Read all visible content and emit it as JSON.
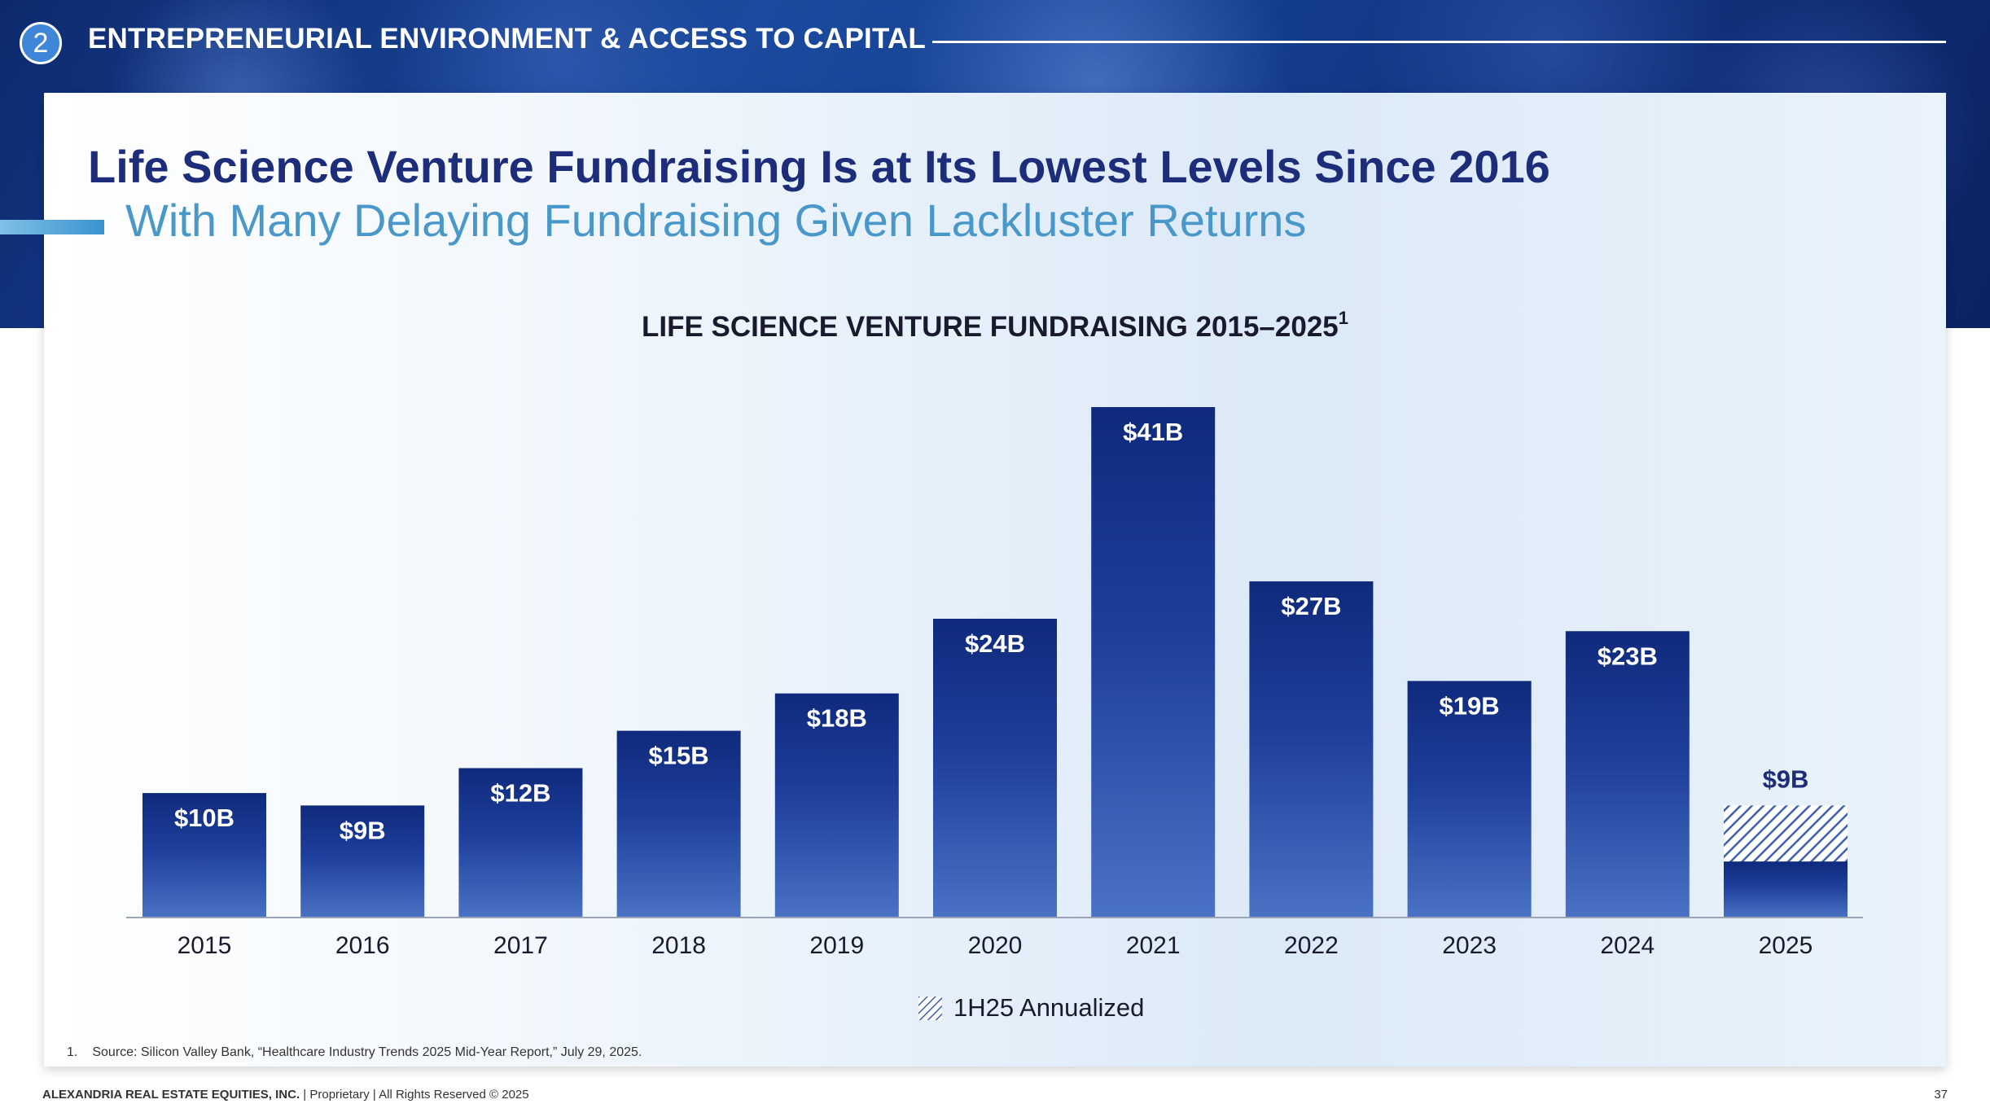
{
  "section": {
    "number": "2",
    "title": "ENTREPRENEURIAL ENVIRONMENT & ACCESS TO CAPITAL"
  },
  "slide": {
    "title": "Life Science Venture Fundraising Is at Its Lowest Levels Since 2016",
    "subtitle": "With Many Delaying Fundraising Given Lackluster Returns"
  },
  "colors": {
    "bar_dark": "#0f2a7c",
    "bar_light": "#4a72c4",
    "label_outside": "#1d2d7a",
    "axis": "#9aa4b5"
  },
  "chart_data": {
    "type": "bar",
    "title": "LIFE SCIENCE VENTURE FUNDRAISING 2015–2025",
    "title_footnote": "1",
    "categories": [
      "2015",
      "2016",
      "2017",
      "2018",
      "2019",
      "2020",
      "2021",
      "2022",
      "2023",
      "2024",
      "2025"
    ],
    "values": [
      10,
      9,
      12,
      15,
      18,
      24,
      41,
      27,
      19,
      23,
      9
    ],
    "value_labels": [
      "$10B",
      "$9B",
      "$12B",
      "$15B",
      "$18B",
      "$24B",
      "$41B",
      "$27B",
      "$19B",
      "$23B",
      "$9B"
    ],
    "partial": {
      "category": "2025",
      "actual_value": 4.5,
      "annualized_value": 9,
      "legend_label": "1H25 Annualized"
    },
    "unit": "$B",
    "ylim": [
      0,
      41
    ],
    "grid": false,
    "legend_position": "bottom-center"
  },
  "footnote": {
    "number": "1.",
    "text": "Source: Silicon Valley Bank, “Healthcare Industry Trends 2025 Mid-Year Report,” July 29, 2025."
  },
  "footer": {
    "company": "ALEXANDRIA REAL ESTATE EQUITIES, INC.",
    "rights": " | Proprietary | All Rights Reserved © 2025",
    "page_number": "37"
  }
}
